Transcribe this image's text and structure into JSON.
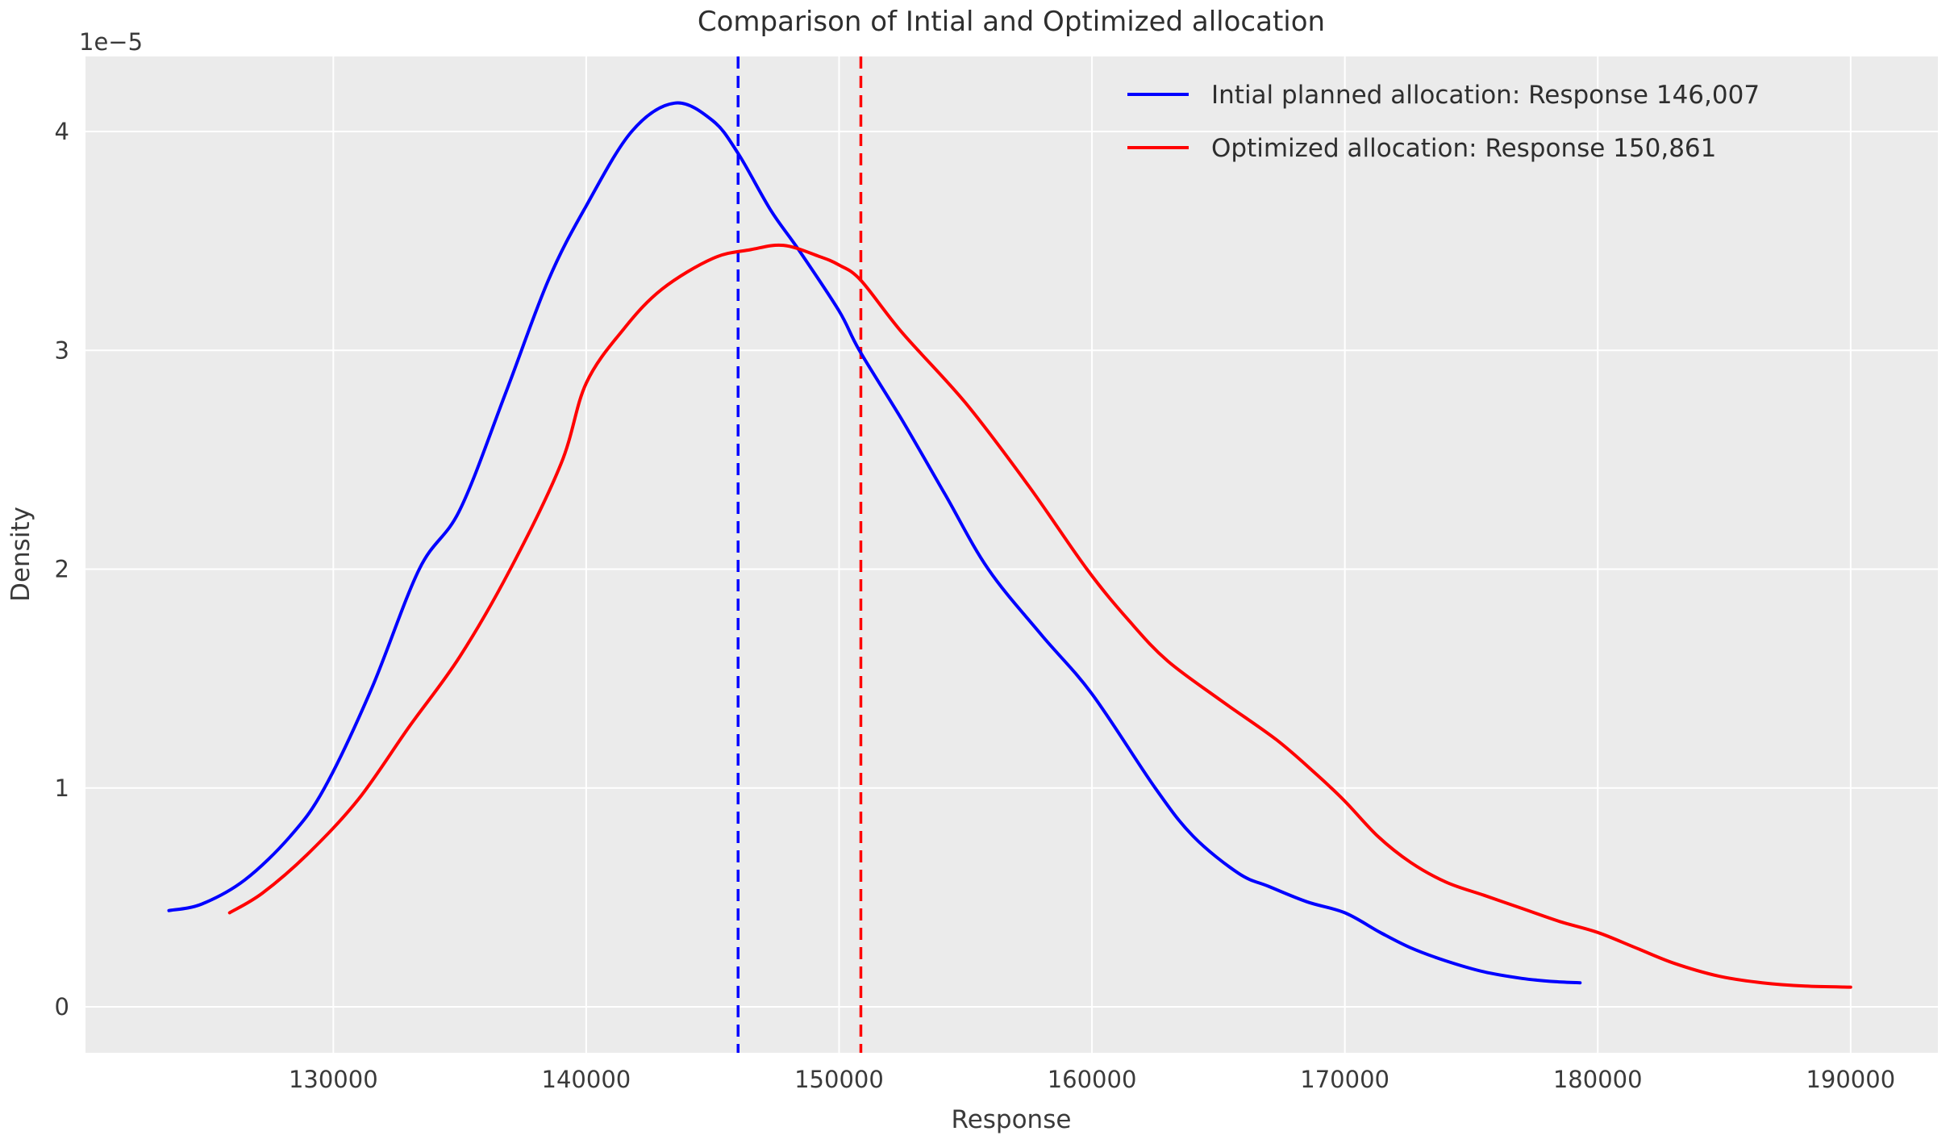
{
  "figure": {
    "panel_color": "#ebebeb",
    "grid_color": "#ffffff",
    "text_color": "#2e2e2e"
  },
  "chart_data": {
    "type": "line",
    "title": "Comparison of Intial and Optimized allocation",
    "xlabel": "Response",
    "ylabel": "Density",
    "y_offset_text": "1e−5",
    "grid": true,
    "legend_position": "upper right",
    "x_ticks": [
      130000,
      140000,
      150000,
      160000,
      170000,
      180000,
      190000
    ],
    "y_ticks": [
      0,
      1,
      2,
      3,
      4
    ],
    "xlim": [
      120200,
      193450
    ],
    "ylim_1e5": [
      -0.21,
      4.343
    ],
    "series": [
      {
        "name": "Intial planned allocation: Response 146,007",
        "color": "#0000ff",
        "mean_x": 146007,
        "points_x_response": [
          123500,
          124800,
          126500,
          128300,
          129650,
          131500,
          133400,
          135000,
          136800,
          138500,
          140000,
          141800,
          143500,
          145000,
          146007,
          147300,
          148400,
          150000,
          150800,
          152500,
          154200,
          155900,
          158000,
          160000,
          162500,
          164000,
          165800,
          167000,
          168500,
          170000,
          171400,
          172600,
          174000,
          175500,
          177000,
          178300,
          179300
        ],
        "points_density_1e5": [
          0.44,
          0.47,
          0.58,
          0.78,
          1.0,
          1.45,
          2.0,
          2.27,
          2.8,
          3.32,
          3.66,
          4.0,
          4.13,
          4.05,
          3.9,
          3.64,
          3.46,
          3.18,
          3.0,
          2.68,
          2.34,
          2.0,
          1.7,
          1.43,
          1.0,
          0.78,
          0.61,
          0.55,
          0.48,
          0.43,
          0.34,
          0.27,
          0.21,
          0.16,
          0.13,
          0.115,
          0.11
        ]
      },
      {
        "name": "Optimized allocation: Response 150,861",
        "color": "#ff0000",
        "mean_x": 150861,
        "points_x_response": [
          125900,
          127200,
          129000,
          131000,
          133000,
          135000,
          137000,
          139000,
          140000,
          141500,
          143000,
          145000,
          146500,
          147800,
          149200,
          150000,
          150861,
          152500,
          155000,
          157500,
          159800,
          161500,
          163000,
          165100,
          167300,
          168900,
          170000,
          171300,
          172600,
          174000,
          175500,
          177000,
          178500,
          180000,
          181500,
          183000,
          184800,
          186500,
          188200,
          190000
        ],
        "points_density_1e5": [
          0.43,
          0.52,
          0.7,
          0.95,
          1.28,
          1.6,
          2.0,
          2.48,
          2.85,
          3.1,
          3.28,
          3.42,
          3.46,
          3.48,
          3.43,
          3.39,
          3.32,
          3.08,
          2.76,
          2.38,
          2.0,
          1.76,
          1.58,
          1.4,
          1.22,
          1.06,
          0.94,
          0.78,
          0.66,
          0.57,
          0.51,
          0.45,
          0.39,
          0.34,
          0.27,
          0.2,
          0.14,
          0.11,
          0.095,
          0.09
        ]
      }
    ]
  }
}
